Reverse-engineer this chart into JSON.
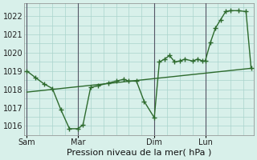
{
  "background_color": "#d8f0ea",
  "grid_color": "#aad4cc",
  "line_color": "#2d6a2d",
  "marker_color": "#2d6a2d",
  "xlabel": "Pression niveau de la mer( hPa )",
  "ylim": [
    1015.5,
    1022.7
  ],
  "yticks": [
    1016,
    1017,
    1018,
    1019,
    1020,
    1021,
    1022
  ],
  "xtick_labels": [
    "Sam",
    "Mar",
    "Dim",
    "Lun"
  ],
  "xtick_positions": [
    0,
    2,
    5,
    7
  ],
  "vline_color": "#555566",
  "vlines": [
    0,
    2,
    5,
    7
  ],
  "series1_x": [
    0,
    0.33,
    0.67,
    1.0,
    1.33,
    1.67,
    2.0,
    2.2,
    2.5,
    2.8,
    3.2,
    3.5,
    3.8,
    4.0,
    4.3,
    4.6,
    5.0,
    5.2,
    5.4,
    5.6,
    5.8,
    6.0,
    6.2,
    6.5,
    6.7,
    6.9,
    7.0,
    7.2,
    7.4,
    7.6,
    7.8,
    8.0,
    8.3,
    8.6,
    8.8
  ],
  "series1_y": [
    1019.0,
    1018.65,
    1018.3,
    1018.05,
    1016.9,
    1015.85,
    1015.85,
    1016.05,
    1018.1,
    1018.2,
    1018.35,
    1018.45,
    1018.55,
    1018.45,
    1018.45,
    1017.35,
    1016.45,
    1019.5,
    1019.65,
    1019.85,
    1019.5,
    1019.55,
    1019.65,
    1019.55,
    1019.65,
    1019.55,
    1019.55,
    1020.55,
    1021.35,
    1021.8,
    1022.25,
    1022.3,
    1022.3,
    1022.25,
    1019.15
  ],
  "series2_x": [
    0,
    8.8
  ],
  "series2_y": [
    1017.85,
    1019.15
  ],
  "xlim": [
    -0.1,
    8.9
  ],
  "minor_xtick_interval": 0.5,
  "fontsize_tick": 7,
  "fontsize_label": 8
}
